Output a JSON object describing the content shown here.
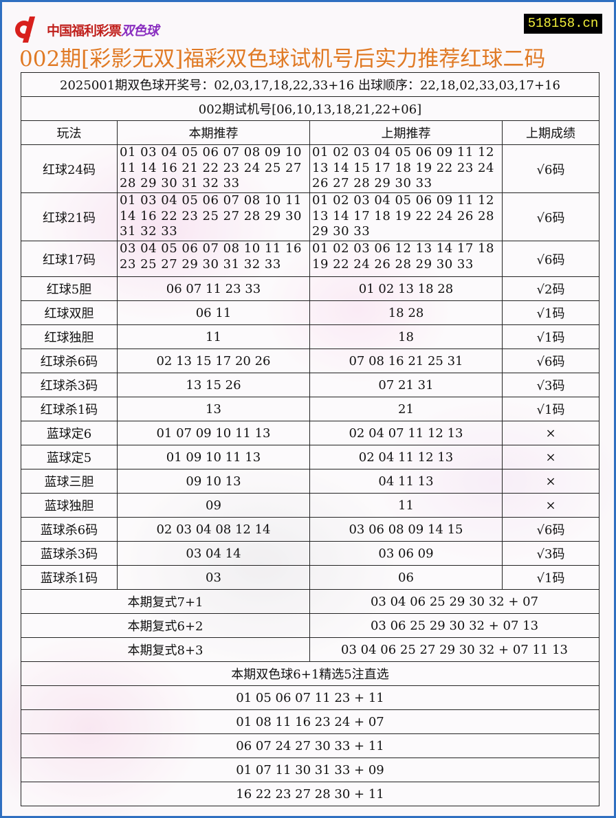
{
  "header": {
    "logo_text": "中国福利彩票",
    "logo_ssq": "双色球",
    "site": "518158.cn",
    "title": "002期[彩影无双]福彩双色球试机号后实力推荐红球二码"
  },
  "info": {
    "draw": "2025001期双色球开奖号：02,03,17,18,22,33+16 出球顺序：22,18,02,33,03,17+16",
    "trial": "002期试机号[06,10,13,18,21,22+06]"
  },
  "columns": [
    "玩法",
    "本期推荐",
    "上期推荐",
    "上期成绩"
  ],
  "rows": [
    {
      "play": "红球24码",
      "current": "01 03 04 05 06 07 08 09 10\n11 14 16 21 22 23 24 25 27\n28 29 30 31 32 33",
      "previous": "01 02 03 04 05 06 09 11 12\n13 14 15 17 18 19 22 23 24\n26 27 28 29 30 33",
      "result": "√6码"
    },
    {
      "play": "红球21码",
      "current": "01 03 04 05 06 07 08 10 11\n14 16 22 23 25 27 28 29 30\n31 32 33",
      "previous": "01 02 03 04 05 06 09 11 12\n13 14 17 18 19 22 24 26 28\n29 30 33",
      "result": "√6码"
    },
    {
      "play": "红球17码",
      "current": "03 04 05 06 07 08 10 11 16\n23 25 27 29 30 31 32 33",
      "previous": "01 02 03 06 12 13 14 17 18\n19 22 24 26 28 29 30 33",
      "result": "√6码"
    },
    {
      "play": "红球5胆",
      "current": "06 07 11 23 33",
      "previous": "01 02 13 18 28",
      "result": "√2码"
    },
    {
      "play": "红球双胆",
      "current": "06 11",
      "previous": "18 28",
      "result": "√1码"
    },
    {
      "play": "红球独胆",
      "current": "11",
      "previous": "18",
      "result": "√1码"
    },
    {
      "play": "红球杀6码",
      "current": "02 13 15 17 20 26",
      "previous": "07 08 16 21 25 31",
      "result": "√6码"
    },
    {
      "play": "红球杀3码",
      "current": "13 15 26",
      "previous": "07 21 31",
      "result": "√3码"
    },
    {
      "play": "红球杀1码",
      "current": "13",
      "previous": "21",
      "result": "√1码"
    },
    {
      "play": "蓝球定6",
      "current": "01 07 09 10 11 13",
      "previous": "02 04 07 11 12 13",
      "result": "×"
    },
    {
      "play": "蓝球定5",
      "current": "01 09 10 11 13",
      "previous": "02 04 11 12 13",
      "result": "×"
    },
    {
      "play": "蓝球三胆",
      "current": "09 10 13",
      "previous": "04 11 13",
      "result": "×"
    },
    {
      "play": "蓝球独胆",
      "current": "09",
      "previous": "11",
      "result": "×"
    },
    {
      "play": "蓝球杀6码",
      "current": "02 03 04 08 12 14",
      "previous": "03 06 08 09 14 15",
      "result": "√6码"
    },
    {
      "play": "蓝球杀3码",
      "current": "03 04 14",
      "previous": "03 06 09",
      "result": "√3码"
    },
    {
      "play": "蓝球杀1码",
      "current": "03",
      "previous": "06",
      "result": "√1码"
    }
  ],
  "fushi": [
    {
      "label": "本期复式7+1",
      "numbers": "03 04 06 25 29 30 32 + 07"
    },
    {
      "label": "本期复式6+2",
      "numbers": "03 06 25 29 30 32 + 07 13"
    },
    {
      "label": "本期复式8+3",
      "numbers": "03 04 06 25 27 29 30 32 + 07 11 13"
    }
  ],
  "picks_title": "本期双色球6+1精选5注直选",
  "picks": [
    "01 05 06 07 11 23 + 11",
    "01 08 11 16 23 24 + 07",
    "06 07 24 27 30 33 + 11",
    "01 07 11 30 31 33 + 09",
    "16 22 23 27 28 30 + 11"
  ]
}
